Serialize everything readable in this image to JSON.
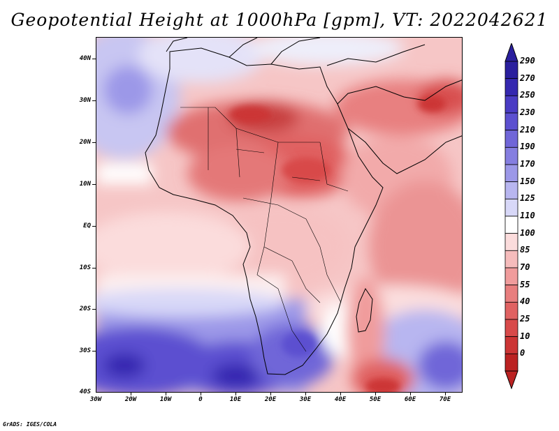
{
  "title": "Geopotential Height at 1000hPa [gpm], VT: 2022042621",
  "credit": "GrADS: IGES/COLA",
  "map": {
    "lat_labels": [
      "40N",
      "30N",
      "20N",
      "10N",
      "EQ",
      "10S",
      "20S",
      "30S",
      "40S"
    ],
    "lon_labels": [
      "30W",
      "20W",
      "10W",
      "0",
      "10E",
      "20E",
      "30E",
      "40E",
      "50E",
      "60E",
      "70E"
    ]
  },
  "colorbar": {
    "levels": [
      "290",
      "270",
      "250",
      "230",
      "210",
      "190",
      "170",
      "150",
      "125",
      "110",
      "100",
      "85",
      "70",
      "55",
      "40",
      "25",
      "10",
      "0"
    ],
    "colors": [
      "#2a1f9e",
      "#3528b0",
      "#4a3cc4",
      "#5c50d0",
      "#7066d8",
      "#857ee0",
      "#9c98e8",
      "#b8b6f0",
      "#d8d8f8",
      "#ffffff",
      "#fbdcdc",
      "#f6bcbc",
      "#f09c9c",
      "#e87e7e",
      "#e06262",
      "#d84a4a",
      "#cc3535",
      "#bb2222"
    ]
  }
}
